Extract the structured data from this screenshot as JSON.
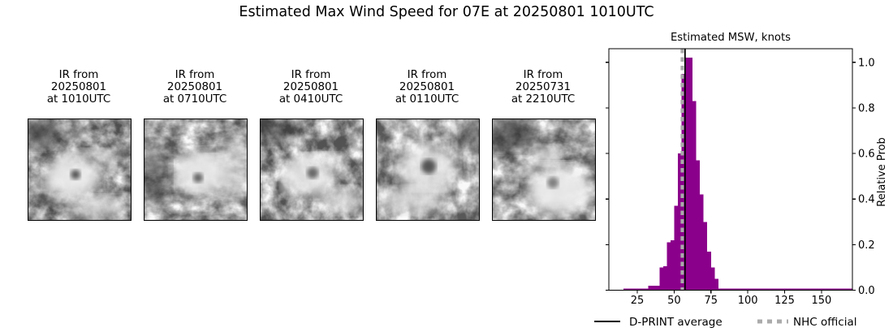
{
  "main_title": "Estimated Max Wind Speed for 07E at 20250801 1010UTC",
  "sat_images": [
    {
      "lines": [
        "IR from",
        "20250801",
        "at 1010UTC"
      ]
    },
    {
      "lines": [
        "IR from",
        "20250801",
        "at 0710UTC"
      ]
    },
    {
      "lines": [
        "IR from",
        "20250801",
        "at 0410UTC"
      ]
    },
    {
      "lines": [
        "IR from",
        "20250801",
        "at 0110UTC"
      ]
    },
    {
      "lines": [
        "IR from",
        "20250731",
        "at 2210UTC"
      ]
    }
  ],
  "chart_data": {
    "type": "bar",
    "title": "Estimated MSW, knots",
    "ylabel": "Relative Prob",
    "xlim": [
      5.7,
      171
    ],
    "ylim": [
      0,
      1.06
    ],
    "xticks": [
      25,
      50,
      75,
      100,
      125,
      150
    ],
    "xtick_labels": [
      "25",
      "50",
      "75",
      "100",
      "125",
      "150"
    ],
    "yticks": [
      0.0,
      0.2,
      0.4,
      0.6,
      0.8,
      1.0
    ],
    "ytick_labels": [
      "0.0",
      "0.2",
      "0.4",
      "0.6",
      "0.8",
      "1.0"
    ],
    "bar_color": "#8B008B",
    "bars": [
      {
        "x0": 15.6,
        "x1": 32.5,
        "h": 0.008
      },
      {
        "x0": 32.5,
        "x1": 40.0,
        "h": 0.02
      },
      {
        "x0": 40.0,
        "x1": 42.5,
        "h": 0.1
      },
      {
        "x0": 42.5,
        "x1": 45.0,
        "h": 0.105
      },
      {
        "x0": 45.0,
        "x1": 47.5,
        "h": 0.21
      },
      {
        "x0": 47.5,
        "x1": 50.0,
        "h": 0.22
      },
      {
        "x0": 50.0,
        "x1": 52.5,
        "h": 0.37
      },
      {
        "x0": 52.5,
        "x1": 55.0,
        "h": 0.6
      },
      {
        "x0": 55.0,
        "x1": 57.5,
        "h": 0.95
      },
      {
        "x0": 57.5,
        "x1": 62.5,
        "h": 1.02
      },
      {
        "x0": 62.5,
        "x1": 65.0,
        "h": 0.83
      },
      {
        "x0": 65.0,
        "x1": 67.5,
        "h": 0.57
      },
      {
        "x0": 67.5,
        "x1": 70.0,
        "h": 0.42
      },
      {
        "x0": 70.0,
        "x1": 72.5,
        "h": 0.3
      },
      {
        "x0": 72.5,
        "x1": 75.0,
        "h": 0.17
      },
      {
        "x0": 75.0,
        "x1": 77.5,
        "h": 0.1
      },
      {
        "x0": 77.5,
        "x1": 80.0,
        "h": 0.05
      },
      {
        "x0": 80.0,
        "x1": 171.0,
        "h": 0.008
      }
    ],
    "dprint_average_knots": 57.4,
    "nhc_official_knots": 55.5,
    "line_colors": {
      "dprint": "#000000",
      "nhc": "#ABABAB"
    },
    "legend": [
      {
        "label": "D-PRINT average",
        "style": "solid",
        "color": "#000000"
      },
      {
        "label": "NHC official",
        "style": "dashed",
        "color": "#ABABAB"
      }
    ],
    "legend_position": "bottom",
    "grid": false
  }
}
